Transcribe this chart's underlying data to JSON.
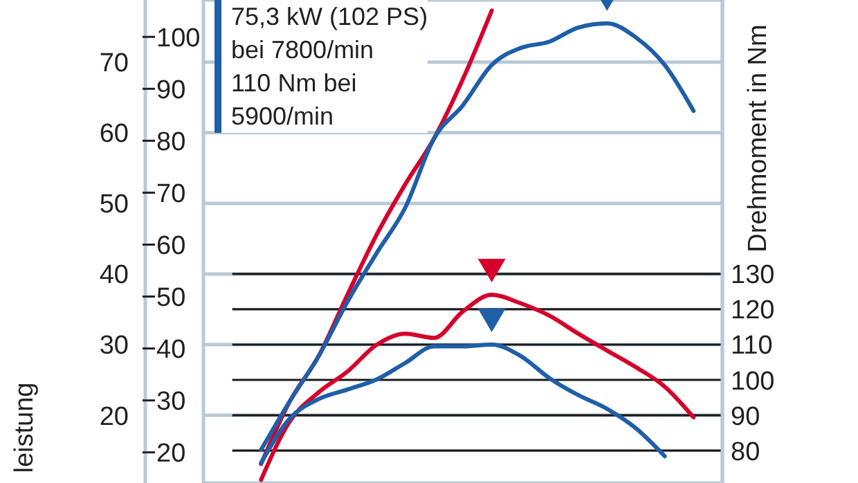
{
  "chart_data": {
    "type": "line",
    "ylabel": "leistung",
    "y3label": "Drehmoment in Nm",
    "categories": [
      null,
      null,
      null,
      null,
      null,
      null,
      null,
      null,
      null,
      null,
      null,
      null,
      null,
      null,
      null,
      null,
      null,
      null,
      null
    ],
    "ylim": [
      10.4,
      78.8
    ],
    "yticks": [
      20,
      30,
      40,
      50,
      60,
      70
    ],
    "y2lim": [
      14.1,
      107.1
    ],
    "y2ticks": [
      20,
      30,
      40,
      50,
      60,
      70,
      80,
      90,
      100
    ],
    "y3lim": [
      70.8,
      207.6
    ],
    "y3ticks": [
      80,
      90,
      100,
      110,
      120,
      130
    ],
    "grid": true,
    "tick_labels": "y",
    "marker": "none",
    "line_style": "solid",
    "annotations": [
      "75,3 kW (102 PS)\nbei 7800/min\n110 Nm bei\n5900/min"
    ],
    "series": [
      {
        "color": "#d5002b",
        "values": [
          null,
          null,
          13.1,
          22.0,
          28.4,
          37.1,
          45.5,
          52.7,
          59.2,
          67.6,
          77.3,
          null,
          null,
          null,
          null,
          null,
          null,
          null,
          null
        ]
      },
      {
        "color": "#1f5fa8",
        "values": [
          null,
          null,
          15.1,
          22.0,
          28.4,
          36.1,
          42.9,
          49.4,
          59.2,
          63.9,
          69.6,
          72.0,
          72.9,
          74.9,
          75.5,
          73.5,
          69.6,
          63.1,
          null
        ]
      },
      {
        "color": "#d5002b",
        "axis": "y3",
        "values": [
          null,
          null,
          71.7,
          88.3,
          96.5,
          102.4,
          109.9,
          113.1,
          111.9,
          119.4,
          124.1,
          121.7,
          118.2,
          113.1,
          108.3,
          103.6,
          98.1,
          89.4,
          null
        ]
      },
      {
        "color": "#1f5fa8",
        "axis": "y3",
        "values": [
          null,
          null,
          76.5,
          89.1,
          94.6,
          97.3,
          100.1,
          104.8,
          109.5,
          109.5,
          110.0,
          106.8,
          100.5,
          95.7,
          91.8,
          86.3,
          78.4,
          null,
          null
        ]
      }
    ]
  }
}
